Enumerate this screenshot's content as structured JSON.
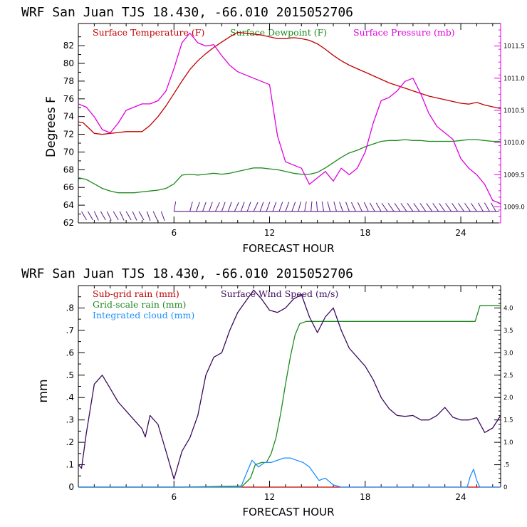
{
  "chart_data": [
    {
      "type": "line",
      "title": "WRF   San Juan TJS  18.430, -66.010  2015052706",
      "xlabel": "FORECAST HOUR",
      "ylabel": "Degrees F",
      "xlim": [
        0,
        26.5
      ],
      "ylim": [
        62,
        84.5
      ],
      "y2lim": [
        1008.75,
        1011.85
      ],
      "xticks": [
        6,
        12,
        18,
        24
      ],
      "yticks": [
        62,
        64,
        66,
        68,
        70,
        72,
        74,
        76,
        78,
        80,
        82
      ],
      "ytick_labels": [
        "62",
        "64",
        "66",
        "68",
        "70",
        "72",
        "74",
        "76",
        "78",
        "80",
        "82"
      ],
      "y2ticks": [
        1009.0,
        1009.5,
        1010.0,
        1010.5,
        1011.0,
        1011.5
      ],
      "y2tick_labels": [
        "1009.0",
        "1009.5",
        "1010.0",
        "1010.5",
        "1011.0",
        "1011.5"
      ],
      "grid": false,
      "legend": "top",
      "series": [
        {
          "name": "Surface Temperature (F)",
          "color": "#c00000",
          "axis": "left",
          "x": [
            0,
            0.3,
            0.6,
            1,
            1.5,
            2,
            2.5,
            3,
            3.5,
            4,
            4.5,
            5,
            5.5,
            6,
            6.5,
            7,
            7.5,
            8,
            8.5,
            9,
            9.5,
            10,
            10.5,
            11,
            11.5,
            12,
            12.5,
            13,
            13.5,
            14,
            14.5,
            15,
            15.5,
            16,
            16.5,
            17,
            17.5,
            18,
            18.5,
            19,
            19.5,
            20,
            20.5,
            21,
            21.5,
            22,
            22.5,
            23,
            23.5,
            24,
            24.5,
            25,
            25.5,
            26,
            26.5
          ],
          "y": [
            73.4,
            73.3,
            72.8,
            72.1,
            72.0,
            72.1,
            72.2,
            72.3,
            72.3,
            72.3,
            73.0,
            74.0,
            75.2,
            76.6,
            78.0,
            79.3,
            80.3,
            81.1,
            81.8,
            82.4,
            83.0,
            83.5,
            83.4,
            83.3,
            83.2,
            83.0,
            82.8,
            82.8,
            82.9,
            82.8,
            82.6,
            82.2,
            81.6,
            80.9,
            80.3,
            79.8,
            79.4,
            79.0,
            78.6,
            78.2,
            77.8,
            77.5,
            77.2,
            76.9,
            76.6,
            76.3,
            76.1,
            75.9,
            75.7,
            75.5,
            75.4,
            75.6,
            75.3,
            75.1,
            74.9
          ]
        },
        {
          "name": "Surface Dewpoint (F)",
          "color": "#1f8a1f",
          "axis": "left",
          "x": [
            0,
            0.5,
            1,
            1.5,
            2,
            2.5,
            3,
            3.5,
            4,
            4.5,
            5,
            5.5,
            6,
            6.5,
            7,
            7.5,
            8,
            8.5,
            9,
            9.5,
            10,
            10.5,
            11,
            11.5,
            12,
            12.5,
            13,
            13.5,
            14,
            14.5,
            15,
            15.5,
            16,
            16.5,
            17,
            17.5,
            18,
            18.5,
            19,
            19.5,
            20,
            20.5,
            21,
            21.5,
            22,
            22.5,
            23,
            23.5,
            24,
            24.5,
            25,
            25.5,
            26,
            26.5
          ],
          "y": [
            67.1,
            66.9,
            66.4,
            65.9,
            65.6,
            65.4,
            65.4,
            65.4,
            65.5,
            65.6,
            65.7,
            65.9,
            66.4,
            67.4,
            67.5,
            67.4,
            67.5,
            67.6,
            67.5,
            67.6,
            67.8,
            68.0,
            68.2,
            68.2,
            68.1,
            68.0,
            67.8,
            67.6,
            67.5,
            67.5,
            67.7,
            68.2,
            68.8,
            69.4,
            69.9,
            70.2,
            70.6,
            70.9,
            71.2,
            71.3,
            71.3,
            71.4,
            71.3,
            71.3,
            71.2,
            71.2,
            71.2,
            71.2,
            71.3,
            71.4,
            71.4,
            71.3,
            71.2,
            71.2
          ]
        },
        {
          "name": "Surface Pressure (mb)",
          "color": "#e000e0",
          "axis": "right",
          "x": [
            0,
            0.5,
            1,
            1.5,
            2,
            2.5,
            3,
            3.5,
            4,
            4.5,
            5,
            5.5,
            6,
            6.5,
            7,
            7.5,
            8,
            8.5,
            9,
            9.5,
            10,
            10.5,
            11,
            11.5,
            12,
            12.5,
            13,
            13.5,
            14,
            14.5,
            15,
            15.5,
            16,
            16.5,
            17,
            17.5,
            18,
            18.5,
            19,
            19.5,
            20,
            20.5,
            21,
            21.5,
            22,
            22.5,
            23,
            23.5,
            24,
            24.5,
            25,
            25.5,
            26,
            26.5
          ],
          "y": [
            1010.6,
            1010.55,
            1010.4,
            1010.2,
            1010.15,
            1010.3,
            1010.5,
            1010.55,
            1010.6,
            1010.6,
            1010.65,
            1010.8,
            1011.15,
            1011.55,
            1011.7,
            1011.55,
            1011.5,
            1011.52,
            1011.35,
            1011.2,
            1011.1,
            1011.05,
            1011.0,
            1010.95,
            1010.9,
            1010.1,
            1009.7,
            1009.65,
            1009.6,
            1009.35,
            1009.45,
            1009.55,
            1009.4,
            1009.6,
            1009.5,
            1009.6,
            1009.85,
            1010.3,
            1010.65,
            1010.7,
            1010.8,
            1010.95,
            1011.0,
            1010.75,
            1010.45,
            1010.25,
            1010.15,
            1010.05,
            1009.75,
            1009.6,
            1009.5,
            1009.35,
            1009.1,
            1009.05
          ]
        }
      ],
      "wind_barbs": {
        "x": [
          0.2,
          0.6,
          1.0,
          1.4,
          1.8,
          2.2,
          2.6,
          3.0,
          3.4,
          3.8,
          4.3,
          4.7,
          5.2,
          6.0,
          7.0,
          7.4,
          7.8,
          8.2,
          8.6,
          9.0,
          9.4,
          9.8,
          10.2,
          10.6,
          11.0,
          11.4,
          11.8,
          12.2,
          12.6,
          13.0,
          13.4,
          13.8,
          14.2,
          14.6,
          15.0,
          15.4,
          15.8,
          16.2,
          16.6,
          17.0,
          17.4,
          17.8,
          18.2,
          18.6,
          19.0,
          19.4,
          19.8,
          20.2,
          20.6,
          21.0,
          21.4,
          21.8,
          22.2,
          22.6,
          23.0,
          23.4,
          23.8,
          24.2,
          24.6,
          25.0,
          25.4,
          25.8,
          26.2
        ],
        "direction_deg": [
          60,
          60,
          65,
          60,
          65,
          60,
          65,
          60,
          65,
          60,
          70,
          65,
          70,
          80,
          75,
          70,
          70,
          70,
          65,
          70,
          70,
          65,
          70,
          70,
          65,
          70,
          70,
          70,
          70,
          70,
          70,
          75,
          80,
          85,
          95,
          100,
          105,
          105,
          110,
          110,
          115,
          115,
          115,
          120,
          120,
          125,
          125,
          125,
          125,
          125,
          125,
          125,
          125,
          125,
          125,
          125,
          125,
          125,
          125,
          125,
          120,
          120,
          120
        ]
      }
    },
    {
      "type": "line",
      "title": "WRF   San Juan TJS  18.430, -66.010  2015052706",
      "xlabel": "FORECAST HOUR",
      "ylabel": "mm",
      "xlim": [
        0,
        26.5
      ],
      "ylim": [
        0,
        0.9
      ],
      "y2lim": [
        0,
        4.5
      ],
      "xticks": [
        6,
        12,
        18,
        24
      ],
      "yticks": [
        0,
        0.1,
        0.2,
        0.3,
        0.4,
        0.5,
        0.6,
        0.7,
        0.8
      ],
      "ytick_labels": [
        "0",
        ".1",
        ".2",
        ".3",
        ".4",
        ".5",
        ".6",
        ".7",
        ".8"
      ],
      "y2ticks": [
        0,
        0.5,
        1.0,
        1.5,
        2.0,
        2.5,
        3.0,
        3.5,
        4.0
      ],
      "y2tick_labels": [
        "0",
        ".5",
        "1.0",
        "1.5",
        "2.0",
        "2.5",
        "3.0",
        "3.5",
        "4.0"
      ],
      "grid": false,
      "legend": "top",
      "series": [
        {
          "name": "Sub-grid rain (mm)",
          "color": "#c00000",
          "axis": "left",
          "x": [
            0,
            26.5
          ],
          "y": [
            0,
            0
          ]
        },
        {
          "name": "Grid-scale rain (mm)",
          "color": "#1f8a1f",
          "axis": "left",
          "x": [
            0,
            6.5,
            10.3,
            10.8,
            11.1,
            11.5,
            11.8,
            12.1,
            12.4,
            12.7,
            13.0,
            13.3,
            13.6,
            13.9,
            14.3,
            14.8,
            16,
            20,
            24,
            24.9,
            25.2,
            26,
            26.5
          ],
          "y": [
            0,
            0,
            0.005,
            0.04,
            0.1,
            0.11,
            0.11,
            0.15,
            0.22,
            0.33,
            0.46,
            0.58,
            0.68,
            0.73,
            0.74,
            0.74,
            0.74,
            0.74,
            0.74,
            0.74,
            0.81,
            0.81,
            0.81
          ]
        },
        {
          "name": "Integrated cloud (mm)",
          "color": "#1e90ff",
          "axis": "left",
          "x": [
            0,
            10.2,
            10.6,
            10.9,
            11.3,
            11.7,
            12.1,
            12.5,
            12.9,
            13.3,
            13.7,
            14.1,
            14.5,
            14.9,
            15.1,
            15.5,
            16,
            16.5,
            24.4,
            24.6,
            24.8,
            25.0,
            25.2,
            26.5
          ],
          "y": [
            0,
            0,
            0.07,
            0.12,
            0.09,
            0.11,
            0.11,
            0.12,
            0.13,
            0.13,
            0.12,
            0.11,
            0.09,
            0.05,
            0.03,
            0.04,
            0.01,
            0,
            0,
            0.05,
            0.08,
            0.03,
            0,
            0
          ]
        },
        {
          "name": "Surface Wind Speed (m/s)",
          "color": "#3a0a5e",
          "axis": "right",
          "x": [
            0,
            0.2,
            0.5,
            1,
            1.5,
            2,
            2.5,
            3,
            3.5,
            4,
            4.2,
            4.5,
            5,
            5.5,
            6,
            6.5,
            7,
            7.5,
            8,
            8.5,
            9,
            9.5,
            10,
            10.5,
            11,
            11.5,
            12,
            12.5,
            13,
            13.5,
            14,
            14.5,
            15,
            15.5,
            16,
            16.5,
            17,
            17.5,
            18,
            18.5,
            19,
            19.5,
            20,
            20.5,
            21,
            21.5,
            22,
            22.5,
            23,
            23.5,
            24,
            24.5,
            25,
            25.5,
            26,
            26.5
          ],
          "y": [
            0.5,
            0.42,
            1.2,
            2.3,
            2.5,
            2.2,
            1.9,
            1.7,
            1.5,
            1.3,
            1.12,
            1.6,
            1.4,
            0.8,
            0.18,
            0.8,
            1.1,
            1.6,
            2.5,
            2.9,
            3.0,
            3.5,
            3.9,
            4.15,
            4.4,
            4.2,
            3.95,
            3.9,
            4.0,
            4.2,
            4.3,
            3.8,
            3.45,
            3.8,
            4.0,
            3.5,
            3.1,
            2.9,
            2.7,
            2.4,
            2.0,
            1.75,
            1.6,
            1.58,
            1.6,
            1.5,
            1.5,
            1.6,
            1.78,
            1.56,
            1.5,
            1.5,
            1.55,
            1.22,
            1.32,
            1.6
          ]
        }
      ]
    }
  ]
}
